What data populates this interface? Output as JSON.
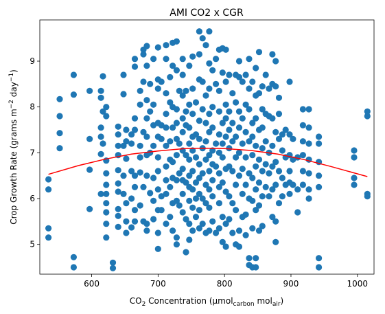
{
  "chart_data": {
    "type": "scatter",
    "title": "AMI CO2 x CGR",
    "xlabel": {
      "base": "CO",
      "sub": "2",
      "rest": " Concentration (μmol",
      "sub2": "carbon",
      "rest2": " mol",
      "sub3": "air",
      "end": ")"
    },
    "ylabel": {
      "base": "Crop Growth Rate (grams m",
      "sup": "−2",
      "mid": " day",
      "sup2": "−1",
      "end": ")"
    },
    "xlim": [
      522,
      1025
    ],
    "ylim": [
      4.35,
      9.9
    ],
    "xticks": [
      600,
      700,
      800,
      900,
      1000
    ],
    "yticks": [
      5,
      6,
      7,
      8,
      9
    ],
    "marker_color": "#1f77b4",
    "fit_color": "#ff0000",
    "fit_curve": {
      "x": [
        535,
        580,
        620,
        660,
        700,
        740,
        770,
        800,
        840,
        880,
        920,
        960,
        1000,
        1015
      ],
      "y": [
        6.53,
        6.72,
        6.86,
        6.97,
        7.04,
        7.09,
        7.1,
        7.09,
        7.05,
        6.97,
        6.85,
        6.7,
        6.54,
        6.48
      ]
    },
    "points": [
      [
        535,
        6.42
      ],
      [
        535,
        6.2
      ],
      [
        535,
        5.35
      ],
      [
        535,
        5.15
      ],
      [
        552,
        8.17
      ],
      [
        552,
        7.8
      ],
      [
        552,
        7.43
      ],
      [
        552,
        7.1
      ],
      [
        573,
        8.7
      ],
      [
        573,
        8.27
      ],
      [
        573,
        4.72
      ],
      [
        573,
        4.5
      ],
      [
        597,
        8.35
      ],
      [
        597,
        7.3
      ],
      [
        597,
        6.63
      ],
      [
        597,
        5.77
      ],
      [
        614,
        8.35
      ],
      [
        614,
        8.2
      ],
      [
        614,
        7.55
      ],
      [
        614,
        7.35
      ],
      [
        614,
        6.97
      ],
      [
        614,
        6.1
      ],
      [
        617,
        8.67
      ],
      [
        617,
        7.9
      ],
      [
        617,
        7.2
      ],
      [
        622,
        8.0
      ],
      [
        622,
        7.8
      ],
      [
        622,
        6.83
      ],
      [
        622,
        6.55
      ],
      [
        622,
        6.3
      ],
      [
        622,
        6.1
      ],
      [
        622,
        5.9
      ],
      [
        622,
        5.7
      ],
      [
        622,
        5.45
      ],
      [
        622,
        5.15
      ],
      [
        632,
        4.6
      ],
      [
        632,
        4.48
      ],
      [
        640,
        7.57
      ],
      [
        640,
        7.4
      ],
      [
        640,
        7.15
      ],
      [
        640,
        6.95
      ],
      [
        640,
        6.62
      ],
      [
        640,
        6.33
      ],
      [
        640,
        6.15
      ],
      [
        640,
        5.77
      ],
      [
        640,
        5.62
      ],
      [
        640,
        5.38
      ],
      [
        648,
        8.7
      ],
      [
        648,
        8.28
      ],
      [
        648,
        7.15
      ],
      [
        648,
        6.5
      ],
      [
        648,
        6.1
      ],
      [
        652,
        7.5
      ],
      [
        652,
        7.25
      ],
      [
        652,
        6.87
      ],
      [
        652,
        5.9
      ],
      [
        652,
        5.5
      ],
      [
        652,
        5.25
      ],
      [
        660,
        7.4
      ],
      [
        660,
        7.2
      ],
      [
        660,
        6.6
      ],
      [
        660,
        6.0
      ],
      [
        660,
        5.37
      ],
      [
        665,
        9.05
      ],
      [
        665,
        8.88
      ],
      [
        665,
        7.75
      ],
      [
        665,
        7.5
      ],
      [
        665,
        6.5
      ],
      [
        665,
        6.25
      ],
      [
        665,
        5.75
      ],
      [
        665,
        5.5
      ],
      [
        673,
        8.35
      ],
      [
        673,
        8.05
      ],
      [
        673,
        7.15
      ],
      [
        673,
        6.9
      ],
      [
        673,
        6.57
      ],
      [
        673,
        5.85
      ],
      [
        678,
        9.25
      ],
      [
        678,
        9.15
      ],
      [
        678,
        8.55
      ],
      [
        678,
        7.45
      ],
      [
        678,
        6.25
      ],
      [
        678,
        5.5
      ],
      [
        683,
        9.33
      ],
      [
        683,
        8.9
      ],
      [
        683,
        8.15
      ],
      [
        683,
        7.75
      ],
      [
        683,
        7.35
      ],
      [
        683,
        6.95
      ],
      [
        683,
        6.5
      ],
      [
        683,
        5.45
      ],
      [
        683,
        5.3
      ],
      [
        688,
        8.5
      ],
      [
        688,
        7.9
      ],
      [
        688,
        7.0
      ],
      [
        688,
        6.12
      ],
      [
        693,
        9.05
      ],
      [
        693,
        8.05
      ],
      [
        693,
        7.6
      ],
      [
        693,
        7.15
      ],
      [
        693,
        6.45
      ],
      [
        693,
        5.95
      ],
      [
        693,
        5.55
      ],
      [
        700,
        9.3
      ],
      [
        700,
        8.6
      ],
      [
        700,
        8.4
      ],
      [
        700,
        7.65
      ],
      [
        700,
        7.35
      ],
      [
        700,
        6.9
      ],
      [
        700,
        6.6
      ],
      [
        700,
        6.2
      ],
      [
        700,
        5.75
      ],
      [
        700,
        5.25
      ],
      [
        700,
        4.9
      ],
      [
        705,
        8.55
      ],
      [
        705,
        7.6
      ],
      [
        705,
        7.3
      ],
      [
        705,
        6.05
      ],
      [
        705,
        5.75
      ],
      [
        712,
        9.35
      ],
      [
        712,
        9.05
      ],
      [
        712,
        8.3
      ],
      [
        712,
        7.85
      ],
      [
        712,
        7.55
      ],
      [
        712,
        7.15
      ],
      [
        712,
        6.7
      ],
      [
        712,
        6.4
      ],
      [
        712,
        6.1
      ],
      [
        712,
        5.45
      ],
      [
        718,
        8.65
      ],
      [
        718,
        8.1
      ],
      [
        718,
        7.25
      ],
      [
        718,
        6.85
      ],
      [
        718,
        6.25
      ],
      [
        718,
        5.6
      ],
      [
        722,
        9.4
      ],
      [
        722,
        8.9
      ],
      [
        722,
        8.0
      ],
      [
        722,
        7.55
      ],
      [
        722,
        6.8
      ],
      [
        722,
        6.45
      ],
      [
        722,
        5.9
      ],
      [
        722,
        5.3
      ],
      [
        728,
        9.43
      ],
      [
        728,
        8.8
      ],
      [
        728,
        7.95
      ],
      [
        728,
        7.65
      ],
      [
        728,
        7.3
      ],
      [
        728,
        6.95
      ],
      [
        728,
        6.4
      ],
      [
        728,
        5.95
      ],
      [
        728,
        5.15
      ],
      [
        728,
        5.0
      ],
      [
        732,
        8.35
      ],
      [
        732,
        7.2
      ],
      [
        732,
        6.55
      ],
      [
        732,
        5.85
      ],
      [
        737,
        9.05
      ],
      [
        737,
        8.7
      ],
      [
        737,
        8.25
      ],
      [
        737,
        7.75
      ],
      [
        737,
        7.45
      ],
      [
        737,
        7.05
      ],
      [
        737,
        6.65
      ],
      [
        737,
        6.4
      ],
      [
        737,
        6.1
      ],
      [
        737,
        5.7
      ],
      [
        742,
        8.35
      ],
      [
        742,
        7.9
      ],
      [
        742,
        7.6
      ],
      [
        742,
        6.95
      ],
      [
        742,
        6.35
      ],
      [
        742,
        5.55
      ],
      [
        742,
        4.83
      ],
      [
        747,
        8.9
      ],
      [
        747,
        8.05
      ],
      [
        747,
        7.55
      ],
      [
        747,
        7.2
      ],
      [
        747,
        6.85
      ],
      [
        747,
        6.5
      ],
      [
        747,
        6.25
      ],
      [
        747,
        5.95
      ],
      [
        747,
        5.45
      ],
      [
        747,
        5.1
      ],
      [
        752,
        9.1
      ],
      [
        752,
        8.4
      ],
      [
        752,
        7.85
      ],
      [
        752,
        7.35
      ],
      [
        752,
        7.05
      ],
      [
        752,
        6.6
      ],
      [
        752,
        6.2
      ],
      [
        752,
        5.8
      ],
      [
        752,
        5.3
      ],
      [
        757,
        8.1
      ],
      [
        757,
        7.4
      ],
      [
        757,
        6.9
      ],
      [
        757,
        6.35
      ],
      [
        757,
        6.0
      ],
      [
        757,
        5.6
      ],
      [
        762,
        9.65
      ],
      [
        762,
        9.15
      ],
      [
        762,
        8.6
      ],
      [
        762,
        7.7
      ],
      [
        762,
        7.3
      ],
      [
        762,
        6.75
      ],
      [
        762,
        6.45
      ],
      [
        762,
        6.1
      ],
      [
        762,
        5.75
      ],
      [
        762,
        5.35
      ],
      [
        767,
        9.5
      ],
      [
        767,
        8.55
      ],
      [
        767,
        7.95
      ],
      [
        767,
        7.1
      ],
      [
        767,
        6.55
      ],
      [
        767,
        6.0
      ],
      [
        767,
        5.45
      ],
      [
        772,
        9.35
      ],
      [
        772,
        8.25
      ],
      [
        772,
        7.65
      ],
      [
        772,
        7.25
      ],
      [
        772,
        6.85
      ],
      [
        772,
        6.3
      ],
      [
        772,
        5.9
      ],
      [
        772,
        5.25
      ],
      [
        777,
        9.65
      ],
      [
        777,
        8.95
      ],
      [
        777,
        8.4
      ],
      [
        777,
        7.85
      ],
      [
        777,
        7.45
      ],
      [
        777,
        6.95
      ],
      [
        777,
        6.6
      ],
      [
        777,
        6.2
      ],
      [
        777,
        5.8
      ],
      [
        777,
        5.3
      ],
      [
        782,
        8.8
      ],
      [
        782,
        8.0
      ],
      [
        782,
        7.55
      ],
      [
        782,
        7.05
      ],
      [
        782,
        6.75
      ],
      [
        782,
        6.4
      ],
      [
        782,
        6.05
      ],
      [
        782,
        5.5
      ],
      [
        787,
        9.05
      ],
      [
        787,
        8.5
      ],
      [
        787,
        7.2
      ],
      [
        787,
        6.7
      ],
      [
        787,
        5.25
      ],
      [
        792,
        9.25
      ],
      [
        792,
        8.35
      ],
      [
        792,
        7.9
      ],
      [
        792,
        7.4
      ],
      [
        792,
        7.0
      ],
      [
        792,
        6.55
      ],
      [
        792,
        6.25
      ],
      [
        792,
        5.9
      ],
      [
        792,
        5.35
      ],
      [
        797,
        9.28
      ],
      [
        797,
        8.75
      ],
      [
        797,
        7.65
      ],
      [
        797,
        7.2
      ],
      [
        797,
        6.9
      ],
      [
        797,
        6.35
      ],
      [
        797,
        5.6
      ],
      [
        797,
        5.05
      ],
      [
        802,
        9.25
      ],
      [
        802,
        8.55
      ],
      [
        802,
        8.05
      ],
      [
        802,
        7.75
      ],
      [
        802,
        7.35
      ],
      [
        802,
        6.65
      ],
      [
        802,
        6.15
      ],
      [
        802,
        5.45
      ],
      [
        802,
        4.95
      ],
      [
        807,
        8.7
      ],
      [
        807,
        7.9
      ],
      [
        807,
        7.5
      ],
      [
        807,
        7.1
      ],
      [
        807,
        6.7
      ],
      [
        807,
        6.05
      ],
      [
        807,
        5.55
      ],
      [
        812,
        8.3
      ],
      [
        812,
        7.65
      ],
      [
        812,
        7.25
      ],
      [
        812,
        6.6
      ],
      [
        812,
        5.9
      ],
      [
        812,
        5.25
      ],
      [
        817,
        8.7
      ],
      [
        817,
        8.1
      ],
      [
        817,
        7.35
      ],
      [
        817,
        6.9
      ],
      [
        817,
        6.3
      ],
      [
        817,
        5.75
      ],
      [
        817,
        5.0
      ],
      [
        822,
        9.0
      ],
      [
        822,
        8.65
      ],
      [
        822,
        7.9
      ],
      [
        822,
        7.55
      ],
      [
        822,
        7.0
      ],
      [
        822,
        6.5
      ],
      [
        822,
        5.3
      ],
      [
        822,
        4.95
      ],
      [
        827,
        8.55
      ],
      [
        827,
        7.75
      ],
      [
        827,
        7.2
      ],
      [
        827,
        6.65
      ],
      [
        827,
        6.1
      ],
      [
        827,
        5.6
      ],
      [
        832,
        8.7
      ],
      [
        832,
        8.05
      ],
      [
        832,
        7.45
      ],
      [
        832,
        6.9
      ],
      [
        832,
        6.3
      ],
      [
        832,
        5.65
      ],
      [
        832,
        5.2
      ],
      [
        837,
        9.05
      ],
      [
        837,
        8.4
      ],
      [
        837,
        7.95
      ],
      [
        837,
        7.25
      ],
      [
        837,
        6.55
      ],
      [
        837,
        6.0
      ],
      [
        837,
        4.7
      ],
      [
        837,
        4.55
      ],
      [
        842,
        8.55
      ],
      [
        842,
        7.65
      ],
      [
        842,
        7.35
      ],
      [
        842,
        6.95
      ],
      [
        842,
        6.45
      ],
      [
        842,
        5.95
      ],
      [
        842,
        5.35
      ],
      [
        842,
        4.5
      ],
      [
        847,
        8.85
      ],
      [
        847,
        8.25
      ],
      [
        847,
        7.75
      ],
      [
        847,
        7.15
      ],
      [
        847,
        6.7
      ],
      [
        847,
        6.2
      ],
      [
        847,
        5.75
      ],
      [
        847,
        4.7
      ],
      [
        847,
        4.5
      ],
      [
        852,
        9.2
      ],
      [
        852,
        8.3
      ],
      [
        852,
        7.5
      ],
      [
        852,
        6.85
      ],
      [
        852,
        6.35
      ],
      [
        852,
        5.85
      ],
      [
        852,
        5.3
      ],
      [
        857,
        8.45
      ],
      [
        857,
        7.95
      ],
      [
        857,
        7.55
      ],
      [
        857,
        7.1
      ],
      [
        857,
        6.6
      ],
      [
        857,
        6.05
      ],
      [
        857,
        5.4
      ],
      [
        862,
        8.7
      ],
      [
        862,
        7.85
      ],
      [
        862,
        7.25
      ],
      [
        862,
        6.75
      ],
      [
        862,
        6.25
      ],
      [
        867,
        8.4
      ],
      [
        867,
        7.8
      ],
      [
        867,
        7.0
      ],
      [
        867,
        6.55
      ],
      [
        867,
        6.05
      ],
      [
        872,
        9.15
      ],
      [
        872,
        8.5
      ],
      [
        872,
        7.75
      ],
      [
        872,
        7.15
      ],
      [
        872,
        6.7
      ],
      [
        872,
        6.2
      ],
      [
        872,
        5.6
      ],
      [
        877,
        9.0
      ],
      [
        877,
        8.45
      ],
      [
        877,
        7.45
      ],
      [
        877,
        6.8
      ],
      [
        877,
        6.3
      ],
      [
        877,
        5.5
      ],
      [
        877,
        5.05
      ],
      [
        882,
        8.2
      ],
      [
        882,
        7.85
      ],
      [
        882,
        7.3
      ],
      [
        882,
        6.6
      ],
      [
        882,
        5.9
      ],
      [
        887,
        7.4
      ],
      [
        887,
        7.05
      ],
      [
        887,
        6.45
      ],
      [
        887,
        6.05
      ],
      [
        892,
        7.5
      ],
      [
        892,
        6.9
      ],
      [
        892,
        6.3
      ],
      [
        898,
        8.55
      ],
      [
        898,
        7.4
      ],
      [
        898,
        6.95
      ],
      [
        898,
        6.6
      ],
      [
        898,
        6.35
      ],
      [
        898,
        6.1
      ],
      [
        903,
        7.3
      ],
      [
        903,
        6.85
      ],
      [
        903,
        6.3
      ],
      [
        910,
        5.7
      ],
      [
        910,
        6.2
      ],
      [
        910,
        6.9
      ],
      [
        918,
        7.95
      ],
      [
        918,
        7.6
      ],
      [
        918,
        7.25
      ],
      [
        918,
        6.95
      ],
      [
        918,
        6.6
      ],
      [
        918,
        6.3
      ],
      [
        927,
        7.95
      ],
      [
        927,
        7.55
      ],
      [
        927,
        7.2
      ],
      [
        927,
        6.85
      ],
      [
        927,
        6.55
      ],
      [
        927,
        6.2
      ],
      [
        927,
        6.0
      ],
      [
        942,
        7.35
      ],
      [
        942,
        7.2
      ],
      [
        942,
        6.8
      ],
      [
        942,
        6.5
      ],
      [
        942,
        6.25
      ],
      [
        942,
        4.7
      ],
      [
        942,
        4.5
      ],
      [
        995,
        7.05
      ],
      [
        995,
        6.9
      ],
      [
        995,
        6.45
      ],
      [
        995,
        6.3
      ],
      [
        1015,
        7.9
      ],
      [
        1015,
        7.8
      ],
      [
        1015,
        6.1
      ],
      [
        1015,
        6.05
      ]
    ]
  }
}
